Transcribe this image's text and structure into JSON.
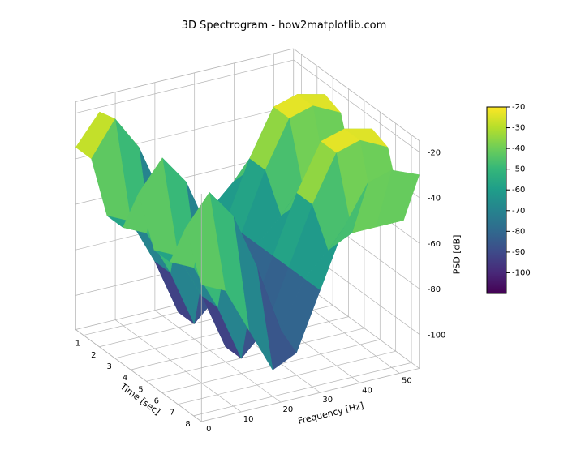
{
  "title": "3D Spectrogram - how2matplotlib.com",
  "chart": {
    "type": "3d-surface",
    "colormap": "viridis",
    "background_color": "#ffffff",
    "grid_color": "#b5b5b5",
    "panel_color": "#ffffff",
    "title_fontsize": 13,
    "label_fontsize": 11,
    "tick_fontsize": 10,
    "x_axis": {
      "label": "Time [sec]",
      "ticks": [
        1,
        2,
        3,
        4,
        5,
        6,
        7,
        8
      ],
      "lim": [
        0.5,
        8.5
      ]
    },
    "y_axis": {
      "label": "Frequency [Hz]",
      "ticks": [
        0,
        10,
        20,
        30,
        40,
        50
      ],
      "lim": [
        0,
        55
      ]
    },
    "z_axis": {
      "label": "PSD [dB]",
      "ticks": [
        -100,
        -80,
        -60,
        -40,
        -20
      ],
      "lim": [
        -115,
        -15
      ]
    },
    "colorbar": {
      "label": "",
      "ticks": [
        -100,
        -90,
        -80,
        -70,
        -60,
        -50,
        -40,
        -30,
        -20
      ],
      "vmin": -110,
      "vmax": -20
    },
    "viridis_stops": [
      {
        "t": 0.0,
        "c": "#440154"
      },
      {
        "t": 0.11,
        "c": "#482878"
      },
      {
        "t": 0.22,
        "c": "#3e4a89"
      },
      {
        "t": 0.33,
        "c": "#31688e"
      },
      {
        "t": 0.44,
        "c": "#26828e"
      },
      {
        "t": 0.56,
        "c": "#1f9e89"
      },
      {
        "t": 0.67,
        "c": "#35b779"
      },
      {
        "t": 0.78,
        "c": "#6ece58"
      },
      {
        "t": 0.89,
        "c": "#b5de2b"
      },
      {
        "t": 1.0,
        "c": "#fde725"
      }
    ],
    "surface": {
      "time_vals": [
        0.5,
        1.5,
        2.5,
        3.5,
        4.5,
        5.5,
        6.5,
        7.5,
        8.5
      ],
      "freq_vals": [
        0,
        6,
        12,
        18,
        24,
        30,
        36,
        42,
        48,
        55
      ],
      "psd": [
        [
          -35,
          -22,
          -35,
          -60,
          -80,
          -80,
          -80,
          -80,
          -80,
          -80
        ],
        [
          -35,
          -20,
          -35,
          -60,
          -90,
          -70,
          -60,
          -55,
          -55,
          -55
        ],
        [
          -55,
          -60,
          -80,
          -105,
          -95,
          -70,
          -45,
          -25,
          -22,
          -25
        ],
        [
          -55,
          -60,
          -80,
          -105,
          -95,
          -70,
          -45,
          -25,
          -22,
          -28
        ],
        [
          -35,
          -22,
          -35,
          -60,
          -90,
          -70,
          -60,
          -55,
          -55,
          -55
        ],
        [
          -55,
          -60,
          -80,
          -105,
          -95,
          -70,
          -45,
          -25,
          -22,
          -25
        ],
        [
          -55,
          -60,
          -80,
          -105,
          -95,
          -70,
          -45,
          -25,
          -22,
          -28
        ],
        [
          -35,
          -22,
          -35,
          -60,
          -90,
          -70,
          -60,
          -55,
          -55,
          -55
        ],
        [
          -55,
          -60,
          -80,
          -100,
          -95,
          -70,
          -45,
          -28,
          -25,
          -30
        ]
      ]
    },
    "view": {
      "elev_deg": 25,
      "azim_deg": -60
    }
  }
}
